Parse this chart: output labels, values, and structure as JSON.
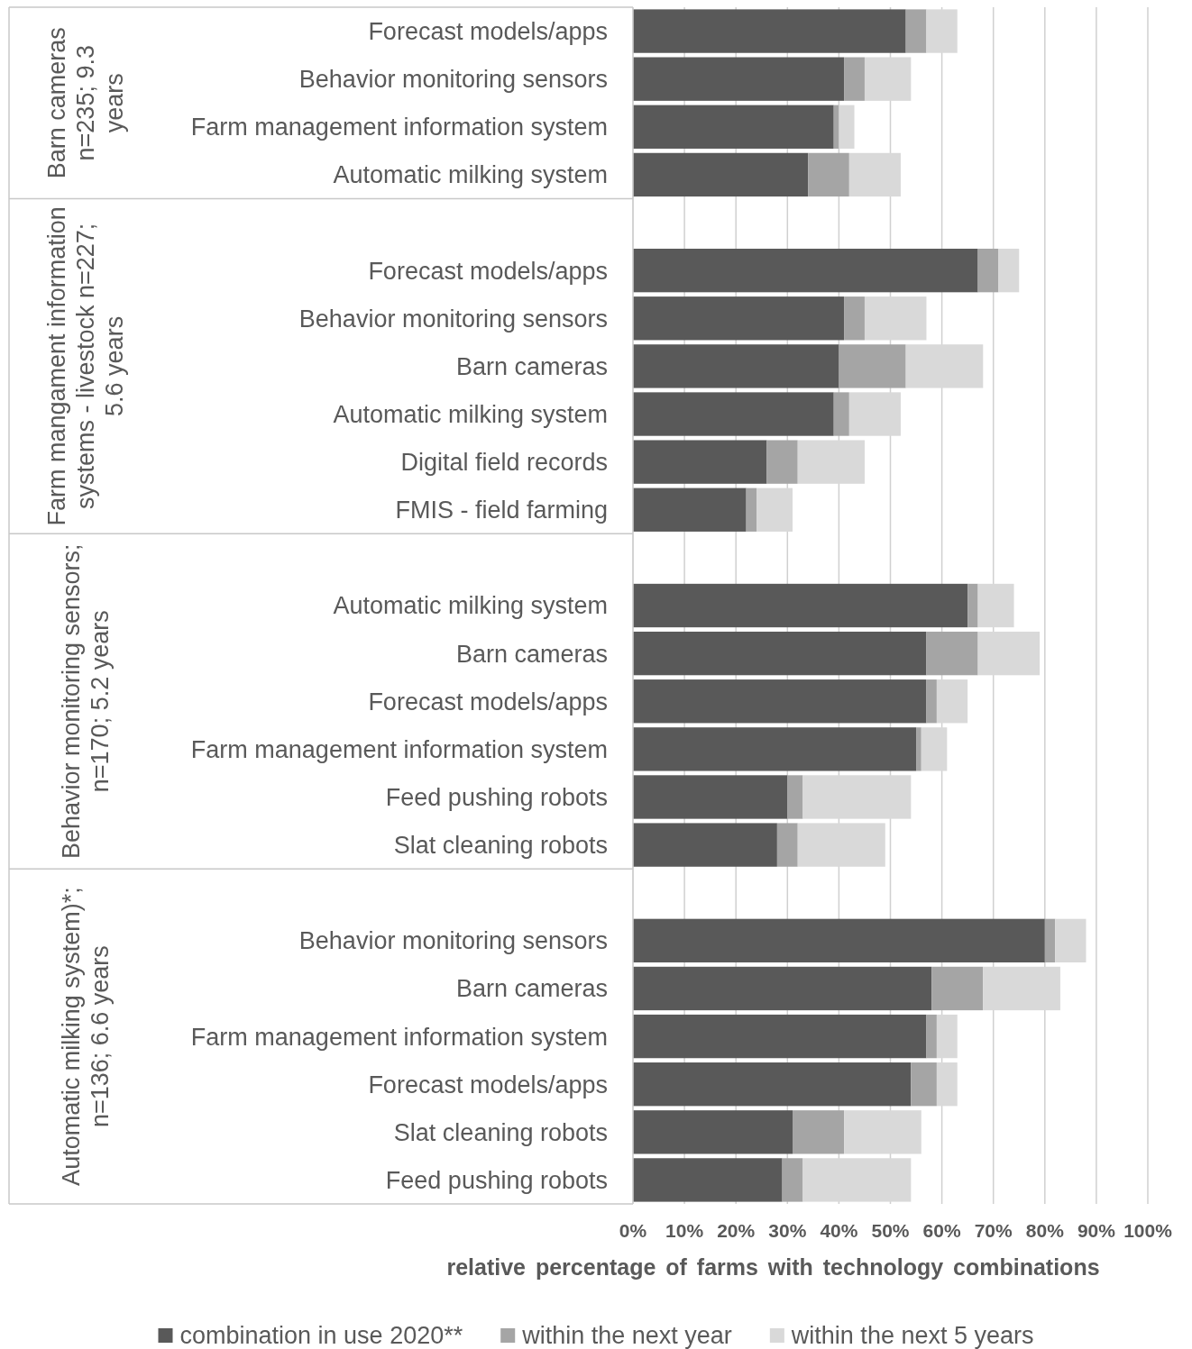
{
  "chart_data": {
    "type": "bar",
    "orientation": "horizontal",
    "stacked": true,
    "categories": [
      "Forecast models/apps",
      "Behavior monitoring sensors",
      "Farm management information system",
      "Automatic milking system",
      null,
      "Forecast models/apps",
      "Behavior monitoring sensors",
      "Barn cameras",
      "Automatic milking system",
      "Digital field records",
      "FMIS - field farming",
      null,
      "Automatic milking system",
      "Barn cameras",
      "Forecast models/apps",
      "Farm management information system",
      "Feed pushing robots",
      "Slat cleaning robots",
      null,
      "Behavior monitoring sensors",
      "Barn cameras",
      "Farm management information system",
      "Forecast models/apps",
      "Slat cleaning robots",
      "Feed pushing robots"
    ],
    "series": [
      {
        "name": "combination in use 2020**",
        "color": "#595959",
        "values": [
          53,
          41,
          39,
          34,
          null,
          67,
          41,
          40,
          39,
          26,
          22,
          null,
          65,
          57,
          57,
          55,
          30,
          28,
          null,
          80,
          58,
          57,
          54,
          31,
          29
        ]
      },
      {
        "name": "within the next year",
        "color": "#a5a5a5",
        "values": [
          4,
          4,
          1,
          8,
          null,
          4,
          4,
          13,
          3,
          6,
          2,
          null,
          2,
          10,
          2,
          1,
          3,
          4,
          null,
          2,
          10,
          2,
          5,
          10,
          4
        ]
      },
      {
        "name": "within the next 5 years",
        "color": "#d9d9d9",
        "values": [
          6,
          9,
          3,
          10,
          null,
          4,
          12,
          15,
          10,
          13,
          7,
          null,
          7,
          12,
          6,
          5,
          21,
          17,
          null,
          6,
          15,
          4,
          4,
          15,
          21
        ]
      }
    ],
    "xlim": [
      0,
      100
    ],
    "xticks": [
      {
        "value": 0,
        "label": "0%"
      },
      {
        "value": 10,
        "label": "10%"
      },
      {
        "value": 20,
        "label": "20%"
      },
      {
        "value": 30,
        "label": "30%"
      },
      {
        "value": 40,
        "label": "40%"
      },
      {
        "value": 50,
        "label": "50%"
      },
      {
        "value": 60,
        "label": "60%"
      },
      {
        "value": 70,
        "label": "70%"
      },
      {
        "value": 80,
        "label": "80%"
      },
      {
        "value": 90,
        "label": "90%"
      },
      {
        "value": 100,
        "label": "100%"
      }
    ],
    "xlabel": "relative percentage of farms with technology combinations",
    "annotations": [
      "Barn cameras n=235; 9.3 years",
      "Farm mangament information systems - livestock n=227; 5.6 years",
      "Behavior monitoring sensors; n=170; 5.2 years",
      "Automatic milking system)*; n=136; 6.6 years"
    ],
    "grid": "x",
    "legend": "bottom"
  }
}
